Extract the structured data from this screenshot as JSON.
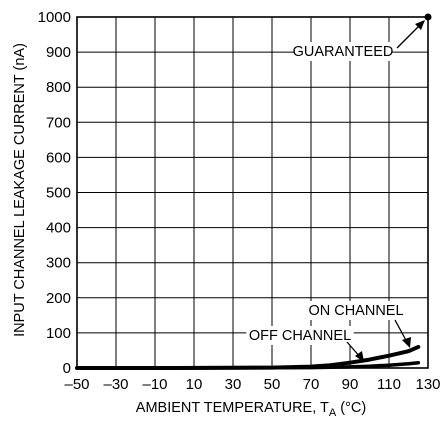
{
  "chart_data": {
    "type": "line",
    "title": "",
    "xlabel": "AMBIENT TEMPERATURE, T",
    "xlabel_sub": "A",
    "xlabel_unit": " (°C)",
    "ylabel": "INPUT CHANNEL LEAKAGE CURRENT (nA)",
    "xlim": [
      -50,
      130
    ],
    "ylim": [
      0,
      1000
    ],
    "x_ticks": [
      -50,
      -30,
      -10,
      10,
      30,
      50,
      70,
      90,
      110,
      130
    ],
    "x_tick_labels": [
      "–50",
      "–30",
      "–10",
      "10",
      "30",
      "50",
      "70",
      "90",
      "110",
      "130"
    ],
    "y_ticks": [
      0,
      100,
      200,
      300,
      400,
      500,
      600,
      700,
      800,
      900,
      1000
    ],
    "y_tick_labels": [
      "0",
      "100",
      "200",
      "300",
      "400",
      "500",
      "600",
      "700",
      "800",
      "900",
      "1000"
    ],
    "grid": true,
    "legend": "none",
    "series": [
      {
        "name": "ON CHANNEL",
        "x": [
          -50,
          0,
          50,
          70,
          80,
          90,
          100,
          110,
          120,
          125
        ],
        "y": [
          0,
          0,
          1,
          4,
          8,
          15,
          24,
          35,
          48,
          60
        ]
      },
      {
        "name": "OFF CHANNEL",
        "x": [
          -50,
          0,
          50,
          70,
          80,
          90,
          100,
          110,
          120,
          125
        ],
        "y": [
          0,
          0,
          0.5,
          1,
          2,
          3,
          5,
          8,
          12,
          15
        ]
      }
    ],
    "annotations": [
      {
        "text": "GUARANTEED",
        "x": 130,
        "y": 1000
      },
      {
        "text": "ON CHANNEL",
        "x": 117,
        "y": 40
      },
      {
        "text": "OFF CHANNEL",
        "x": 97,
        "y": 5
      }
    ]
  }
}
